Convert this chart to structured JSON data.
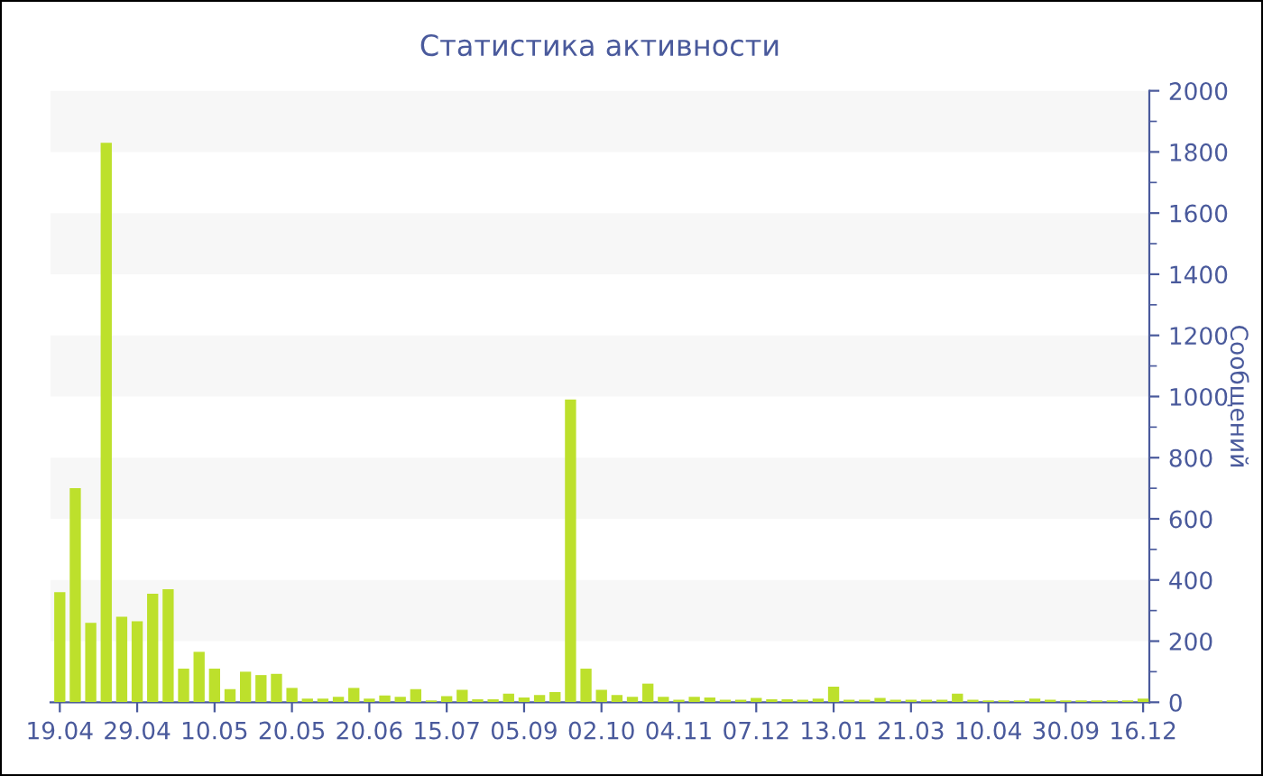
{
  "chart_data": {
    "type": "bar",
    "title": "Статистика активности",
    "ylabel": "Сообщений",
    "categories": [
      "19.04",
      null,
      null,
      null,
      null,
      "29.04",
      null,
      null,
      null,
      null,
      "10.05",
      null,
      null,
      null,
      null,
      "20.05",
      null,
      null,
      null,
      null,
      "20.06",
      null,
      null,
      null,
      null,
      "15.07",
      null,
      null,
      null,
      null,
      "05.09",
      null,
      null,
      null,
      null,
      "02.10",
      null,
      null,
      null,
      null,
      "04.11",
      null,
      null,
      null,
      null,
      "07.12",
      null,
      null,
      null,
      null,
      "13.01",
      null,
      null,
      null,
      null,
      "21.03",
      null,
      null,
      null,
      null,
      "10.04",
      null,
      null,
      null,
      null,
      "30.09",
      null,
      null,
      null,
      null,
      "16.12"
    ],
    "values": [
      360,
      700,
      260,
      1830,
      280,
      265,
      355,
      370,
      110,
      165,
      110,
      43,
      100,
      89,
      93,
      47,
      12,
      12,
      18,
      47,
      12,
      22,
      18,
      43,
      6,
      20,
      41,
      10,
      10,
      28,
      16,
      24,
      33,
      990,
      110,
      41,
      24,
      18,
      61,
      18,
      8,
      18,
      16,
      8,
      8,
      14,
      10,
      10,
      8,
      12,
      51,
      8,
      8,
      14,
      8,
      8,
      8,
      8,
      28,
      8,
      6,
      6,
      6,
      12,
      8,
      6,
      6,
      6,
      6,
      6,
      12
    ],
    "color": "#bde02c",
    "ylim": [
      0,
      2000
    ],
    "yticks": [
      0,
      200,
      400,
      600,
      800,
      1000,
      1200,
      1400,
      1600,
      1800,
      2000
    ],
    "bands": [
      {
        "axis": "y",
        "from": 200,
        "to": 400,
        "color": "#f7f7f7"
      },
      {
        "axis": "y",
        "from": 600,
        "to": 800,
        "color": "#f7f7f7"
      },
      {
        "axis": "y",
        "from": 1000,
        "to": 1200,
        "color": "#f7f7f7"
      },
      {
        "axis": "y",
        "from": 1400,
        "to": 1600,
        "color": "#f7f7f7"
      },
      {
        "axis": "y",
        "from": 1800,
        "to": 2000,
        "color": "#f7f7f7"
      }
    ],
    "grid": false,
    "legend": false
  }
}
